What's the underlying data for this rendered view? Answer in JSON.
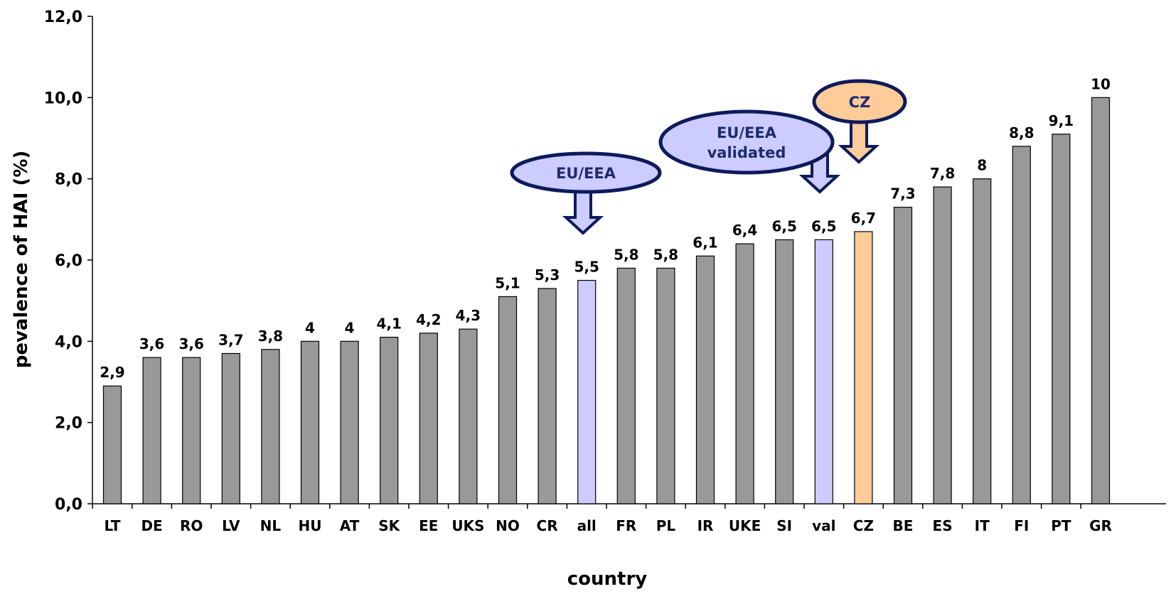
{
  "chart_data": {
    "type": "bar",
    "title": "",
    "xlabel": "country",
    "ylabel": "pevalence of HAI (%)",
    "ylim": [
      0,
      12
    ],
    "yticks": [
      "0,0",
      "2,0",
      "4,0",
      "6,0",
      "8,0",
      "10,0",
      "12,0"
    ],
    "grid": false,
    "categories": [
      "LT",
      "DE",
      "RO",
      "LV",
      "NL",
      "HU",
      "AT",
      "SK",
      "EE",
      "UKS",
      "NO",
      "CR",
      "all",
      "FR",
      "PL",
      "IR",
      "UKE",
      "SI",
      "val",
      "CZ",
      "BE",
      "ES",
      "IT",
      "FI",
      "PT",
      "GR"
    ],
    "values": [
      2.9,
      3.6,
      3.6,
      3.7,
      3.8,
      4,
      4,
      4.1,
      4.2,
      4.3,
      5.1,
      5.3,
      5.5,
      5.8,
      5.8,
      6.1,
      6.4,
      6.5,
      6.5,
      6.7,
      7.3,
      7.8,
      8,
      8.8,
      9.1,
      10
    ],
    "value_labels": [
      "2,9",
      "3,6",
      "3,6",
      "3,7",
      "3,8",
      "4",
      "4",
      "4,1",
      "4,2",
      "4,3",
      "5,1",
      "5,3",
      "5,5",
      "5,8",
      "5,8",
      "6,1",
      "6,4",
      "6,5",
      "6,5",
      "6,7",
      "7,3",
      "7,8",
      "8",
      "8,8",
      "9,1",
      "10"
    ],
    "bar_colors": {
      "default": "#999999",
      "all": "#ccccff",
      "val": "#ccccff",
      "CZ": "#ffcc99"
    },
    "annotations": [
      {
        "text_lines": [
          "EU/EEA"
        ],
        "target": "all",
        "fill": "#ccccff"
      },
      {
        "text_lines": [
          "EU/EEA",
          "validated"
        ],
        "target": "val",
        "fill": "#ccccff"
      },
      {
        "text_lines": [
          "CZ"
        ],
        "target": "CZ",
        "fill": "#ffcc99"
      }
    ]
  },
  "colors": {
    "bar_stroke": "#000000",
    "callout_stroke": "#0d1a5c",
    "callout_text": "#1f2a6b"
  }
}
